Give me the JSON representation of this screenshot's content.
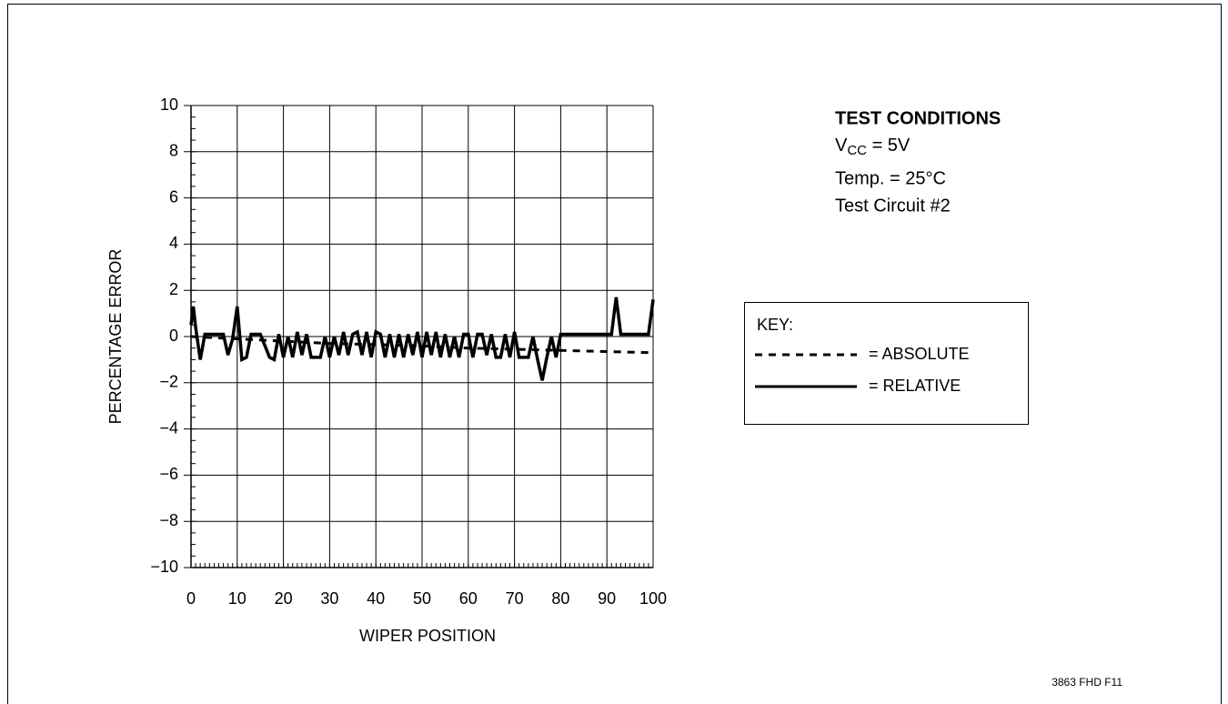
{
  "chart_data": {
    "type": "line",
    "xlabel": "WIPER POSITION",
    "ylabel": "PERCENTAGE ERROR",
    "xlim": [
      0,
      100
    ],
    "xticks": [
      0,
      10,
      20,
      30,
      40,
      50,
      60,
      70,
      80,
      90,
      100
    ],
    "ylim": [
      -10,
      10
    ],
    "yticks": [
      {
        "value": -10,
        "label": "−10"
      },
      {
        "value": -8,
        "label": "−8"
      },
      {
        "value": -6,
        "label": "−6"
      },
      {
        "value": -4,
        "label": "−4"
      },
      {
        "value": -2,
        "label": "−2"
      },
      0,
      2,
      4,
      6,
      8,
      10
    ],
    "grid": true,
    "series": [
      {
        "name": "ABSOLUTE",
        "color": "#000000",
        "style": "dashed",
        "x": [
          0,
          10,
          20,
          30,
          40,
          50,
          60,
          70,
          80,
          90,
          100
        ],
        "values": [
          0,
          -0.1,
          -0.2,
          -0.3,
          -0.35,
          -0.4,
          -0.5,
          -0.55,
          -0.6,
          -0.65,
          -0.7
        ]
      },
      {
        "name": "RELATIVE",
        "color": "#000000",
        "style": "solid",
        "x": [
          0,
          0.5,
          1,
          2,
          3,
          4,
          7,
          8,
          9,
          10,
          11,
          12,
          13,
          15,
          17,
          18,
          19,
          20,
          21,
          22,
          23,
          24,
          25,
          26,
          28,
          29,
          30,
          31,
          32,
          33,
          34,
          35,
          36,
          37,
          38,
          39,
          40,
          41,
          42,
          43,
          44,
          45,
          46,
          47,
          48,
          49,
          50,
          51,
          52,
          53,
          54,
          55,
          56,
          57,
          58,
          59,
          60,
          61,
          62,
          63,
          64,
          65,
          66,
          67,
          68,
          69,
          70,
          71,
          72,
          73,
          74,
          75,
          76,
          77,
          78,
          79,
          80,
          81,
          91,
          92,
          93,
          99,
          100
        ],
        "values": [
          0.5,
          1.3,
          0.4,
          -1.0,
          0.1,
          0.1,
          0.1,
          -0.8,
          -0.1,
          1.3,
          -1.0,
          -0.9,
          0.1,
          0.1,
          -0.9,
          -1.0,
          0.1,
          -0.9,
          0.0,
          -0.9,
          0.2,
          -0.8,
          0.1,
          -0.9,
          -0.9,
          0.0,
          -0.9,
          0.0,
          -0.8,
          0.2,
          -0.8,
          0.1,
          0.2,
          -0.8,
          0.2,
          -0.9,
          0.2,
          0.1,
          -0.9,
          0.1,
          -0.9,
          0.1,
          -0.9,
          0.1,
          -0.8,
          0.2,
          -0.9,
          0.2,
          -0.8,
          0.2,
          -0.9,
          0.1,
          -0.9,
          0.0,
          -0.9,
          0.1,
          0.1,
          -0.9,
          0.1,
          0.1,
          -0.8,
          0.1,
          -0.9,
          -0.9,
          0.1,
          -0.9,
          0.2,
          -0.9,
          -0.9,
          -0.9,
          0.0,
          -1.0,
          -1.9,
          -0.9,
          0.0,
          -0.9,
          0.1,
          0.1,
          0.1,
          1.7,
          0.1,
          0.1,
          1.6
        ]
      }
    ],
    "legend": {
      "title": "KEY:",
      "separator": "="
    },
    "annotations": {
      "conditions_title": "TEST CONDITIONS",
      "vcc": {
        "text": "V",
        "sub": "CC",
        "rest": " = 5V"
      },
      "temp": "Temp. = 25°C",
      "circuit": "Test Circuit #2",
      "figure_id": "3863 FHD F11"
    }
  }
}
